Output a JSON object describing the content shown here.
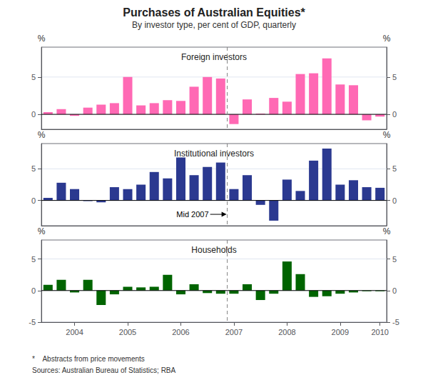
{
  "title": "Purchases of Australian Equities*",
  "subtitle": "By investor type, per cent of GDP, quarterly",
  "footnote": "*    Abstracts from price movements",
  "source": "Sources: Australian Bureau of Statistics; RBA",
  "chart_data": [
    {
      "type": "bar",
      "title": "Foreign investors",
      "categories": [
        null,
        null,
        "2004",
        null,
        null,
        null,
        "2005",
        null,
        null,
        null,
        "2006",
        null,
        null,
        null,
        "2007",
        null,
        null,
        null,
        "2008",
        null,
        null,
        null,
        "2009",
        null,
        null,
        "2010"
      ],
      "values": [
        0.3,
        0.7,
        -0.2,
        0.9,
        1.3,
        1.5,
        5.0,
        1.2,
        1.5,
        1.9,
        1.8,
        3.7,
        5.0,
        4.8,
        -1.3,
        2.0,
        0.1,
        2.2,
        1.7,
        5.4,
        5.5,
        7.5,
        4.0,
        3.9,
        -0.8,
        -0.3
      ],
      "color": "#FF69B4",
      "ylim": [
        -2,
        9
      ],
      "yticks": [
        0,
        5
      ],
      "ylabel": "%",
      "y2lim": [
        -2,
        9
      ],
      "y2ticks": [
        0,
        5
      ],
      "y2label": "%",
      "grid": true,
      "tick_labels": "y",
      "vline": 13.5
    },
    {
      "type": "bar",
      "title": "Institutional investors",
      "categories": [
        null,
        null,
        "2004",
        null,
        null,
        null,
        "2005",
        null,
        null,
        null,
        "2006",
        null,
        null,
        null,
        "2007",
        null,
        null,
        null,
        "2008",
        null,
        null,
        null,
        "2009",
        null,
        null,
        "2010"
      ],
      "values": [
        0.4,
        2.8,
        1.8,
        -0.1,
        -0.3,
        2.1,
        1.8,
        2.5,
        4.5,
        3.5,
        6.8,
        4.0,
        5.3,
        6.0,
        1.8,
        4.0,
        -0.7,
        -3.2,
        3.3,
        1.5,
        6.3,
        8.2,
        2.5,
        3.2,
        2.1,
        2.0
      ],
      "color": "#2B3990",
      "ylim": [
        -4,
        9
      ],
      "yticks": [
        0,
        5
      ],
      "ylabel": "%",
      "y2lim": [
        -4,
        9
      ],
      "y2ticks": [
        0,
        5
      ],
      "y2label": "%",
      "grid": true,
      "tick_labels": "y",
      "vline": 13.5,
      "annotations": [
        {
          "text": "Mid 2007",
          "x": 13.5,
          "y": -2.2
        }
      ]
    },
    {
      "type": "bar",
      "title": "Households",
      "categories": [
        null,
        null,
        "2004",
        null,
        null,
        null,
        "2005",
        null,
        null,
        null,
        "2006",
        null,
        null,
        null,
        "2007",
        null,
        null,
        null,
        "2008",
        null,
        null,
        null,
        "2009",
        null,
        null,
        "2010"
      ],
      "values": [
        0.9,
        1.7,
        -0.3,
        1.7,
        -2.3,
        -0.6,
        0.6,
        0.5,
        0.6,
        2.5,
        -0.6,
        1.0,
        -0.4,
        -0.5,
        -0.5,
        1.0,
        -1.5,
        -0.5,
        4.6,
        2.6,
        -1.0,
        -0.9,
        -0.5,
        -0.3,
        -0.1,
        -0.1
      ],
      "color": "#006400",
      "ylim": [
        -5,
        8
      ],
      "yticks": [
        -5,
        0,
        5
      ],
      "ylabel": "%",
      "y2lim": [
        -5,
        8
      ],
      "y2ticks": [
        -5,
        0,
        5
      ],
      "y2label": "%",
      "grid": true,
      "vline": 13.5
    }
  ]
}
